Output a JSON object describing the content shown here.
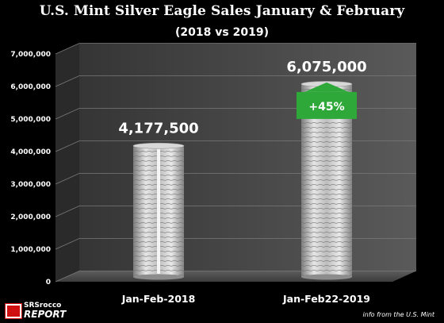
{
  "header": {
    "title": "U.S.  Mint Silver Eagle Sales January & February",
    "subtitle": "(2018 vs 2019)"
  },
  "chart_data": {
    "type": "bar",
    "title": "U.S.  Mint Silver Eagle Sales January & February",
    "subtitle": "(2018 vs 2019)",
    "categories": [
      "Jan-Feb-2018",
      "Jan-Feb22-2019"
    ],
    "values": [
      4177500,
      6075000
    ],
    "data_labels": [
      "4,177,500",
      "6,075,000"
    ],
    "annotation": "+45%",
    "ylim": [
      0,
      7000000
    ],
    "yticks": [
      0,
      1000000,
      2000000,
      3000000,
      4000000,
      5000000,
      6000000,
      7000000
    ],
    "ytick_labels": [
      "0",
      "1,000,000",
      "2,000,000",
      "3,000,000",
      "4,000,000",
      "5,000,000",
      "6,000,000",
      "7,000,000"
    ],
    "grid": true,
    "colors": {
      "background": "#000000",
      "wall": "#4a4a4a",
      "bar": "#c9c9c9",
      "annotation": "#2fa83a"
    }
  },
  "footer": {
    "source": "info from the U.S. Mint",
    "logo_top": "SRSrocco",
    "logo_bottom": "REPORT"
  }
}
